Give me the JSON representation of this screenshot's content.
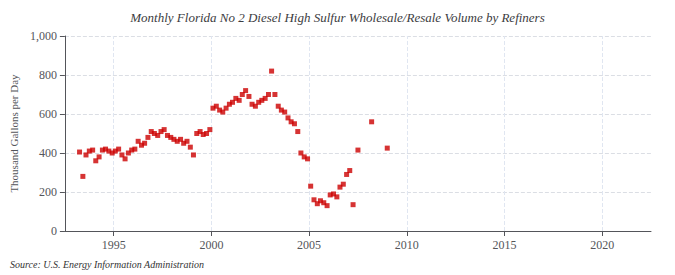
{
  "chart_data": {
    "type": "scatter",
    "title": "Monthly Florida No 2 Diesel High Sulfur Wholesale/Resale Volume by Refiners",
    "ylabel": "Thousand Gallons per Day",
    "annotation": "Source: U.S. Energy Information Administration",
    "color": "#cc0000",
    "marker": "square",
    "grid": true,
    "xlim": [
      1992.5,
      2022.5
    ],
    "xticks": [
      1995,
      2000,
      2005,
      2010,
      2015,
      2020
    ],
    "ylim": [
      0,
      1000
    ],
    "yticks": [
      0,
      200,
      400,
      600,
      800,
      {
        "value": 1000,
        "label": "1,000"
      }
    ],
    "x": [
      1993.25,
      1993.42,
      1993.58,
      1993.75,
      1993.92,
      1994.08,
      1994.25,
      1994.42,
      1994.58,
      1994.75,
      1994.92,
      1995.08,
      1995.25,
      1995.42,
      1995.58,
      1995.75,
      1995.92,
      1996.08,
      1996.25,
      1996.42,
      1996.58,
      1996.75,
      1996.92,
      1997.08,
      1997.25,
      1997.42,
      1997.58,
      1997.75,
      1997.92,
      1998.08,
      1998.25,
      1998.42,
      1998.58,
      1998.75,
      1998.92,
      1999.08,
      1999.25,
      1999.42,
      1999.58,
      1999.75,
      1999.92,
      2000.08,
      2000.25,
      2000.42,
      2000.58,
      2000.75,
      2000.92,
      2001.08,
      2001.25,
      2001.42,
      2001.58,
      2001.75,
      2001.92,
      2002.08,
      2002.25,
      2002.42,
      2002.58,
      2002.75,
      2002.92,
      2003.08,
      2003.25,
      2003.42,
      2003.58,
      2003.75,
      2003.92,
      2004.08,
      2004.25,
      2004.42,
      2004.58,
      2004.75,
      2004.92,
      2005.08,
      2005.25,
      2005.42,
      2005.58,
      2005.75,
      2005.92,
      2006.08,
      2006.25,
      2006.42,
      2006.58,
      2006.75,
      2006.92,
      2007.08,
      2007.25,
      2007.5,
      2008.2,
      2009.0
    ],
    "values": [
      405,
      280,
      390,
      410,
      415,
      360,
      380,
      415,
      420,
      410,
      400,
      410,
      420,
      390,
      370,
      400,
      415,
      420,
      460,
      440,
      450,
      480,
      510,
      500,
      490,
      510,
      520,
      490,
      480,
      470,
      460,
      470,
      450,
      460,
      430,
      390,
      500,
      510,
      495,
      500,
      520,
      630,
      640,
      620,
      610,
      630,
      650,
      660,
      680,
      670,
      700,
      720,
      690,
      650,
      640,
      660,
      670,
      680,
      700,
      820,
      700,
      640,
      620,
      610,
      580,
      560,
      550,
      510,
      400,
      380,
      370,
      230,
      160,
      140,
      155,
      145,
      130,
      185,
      190,
      175,
      225,
      240,
      290,
      310,
      135,
      415,
      560,
      425
    ]
  }
}
